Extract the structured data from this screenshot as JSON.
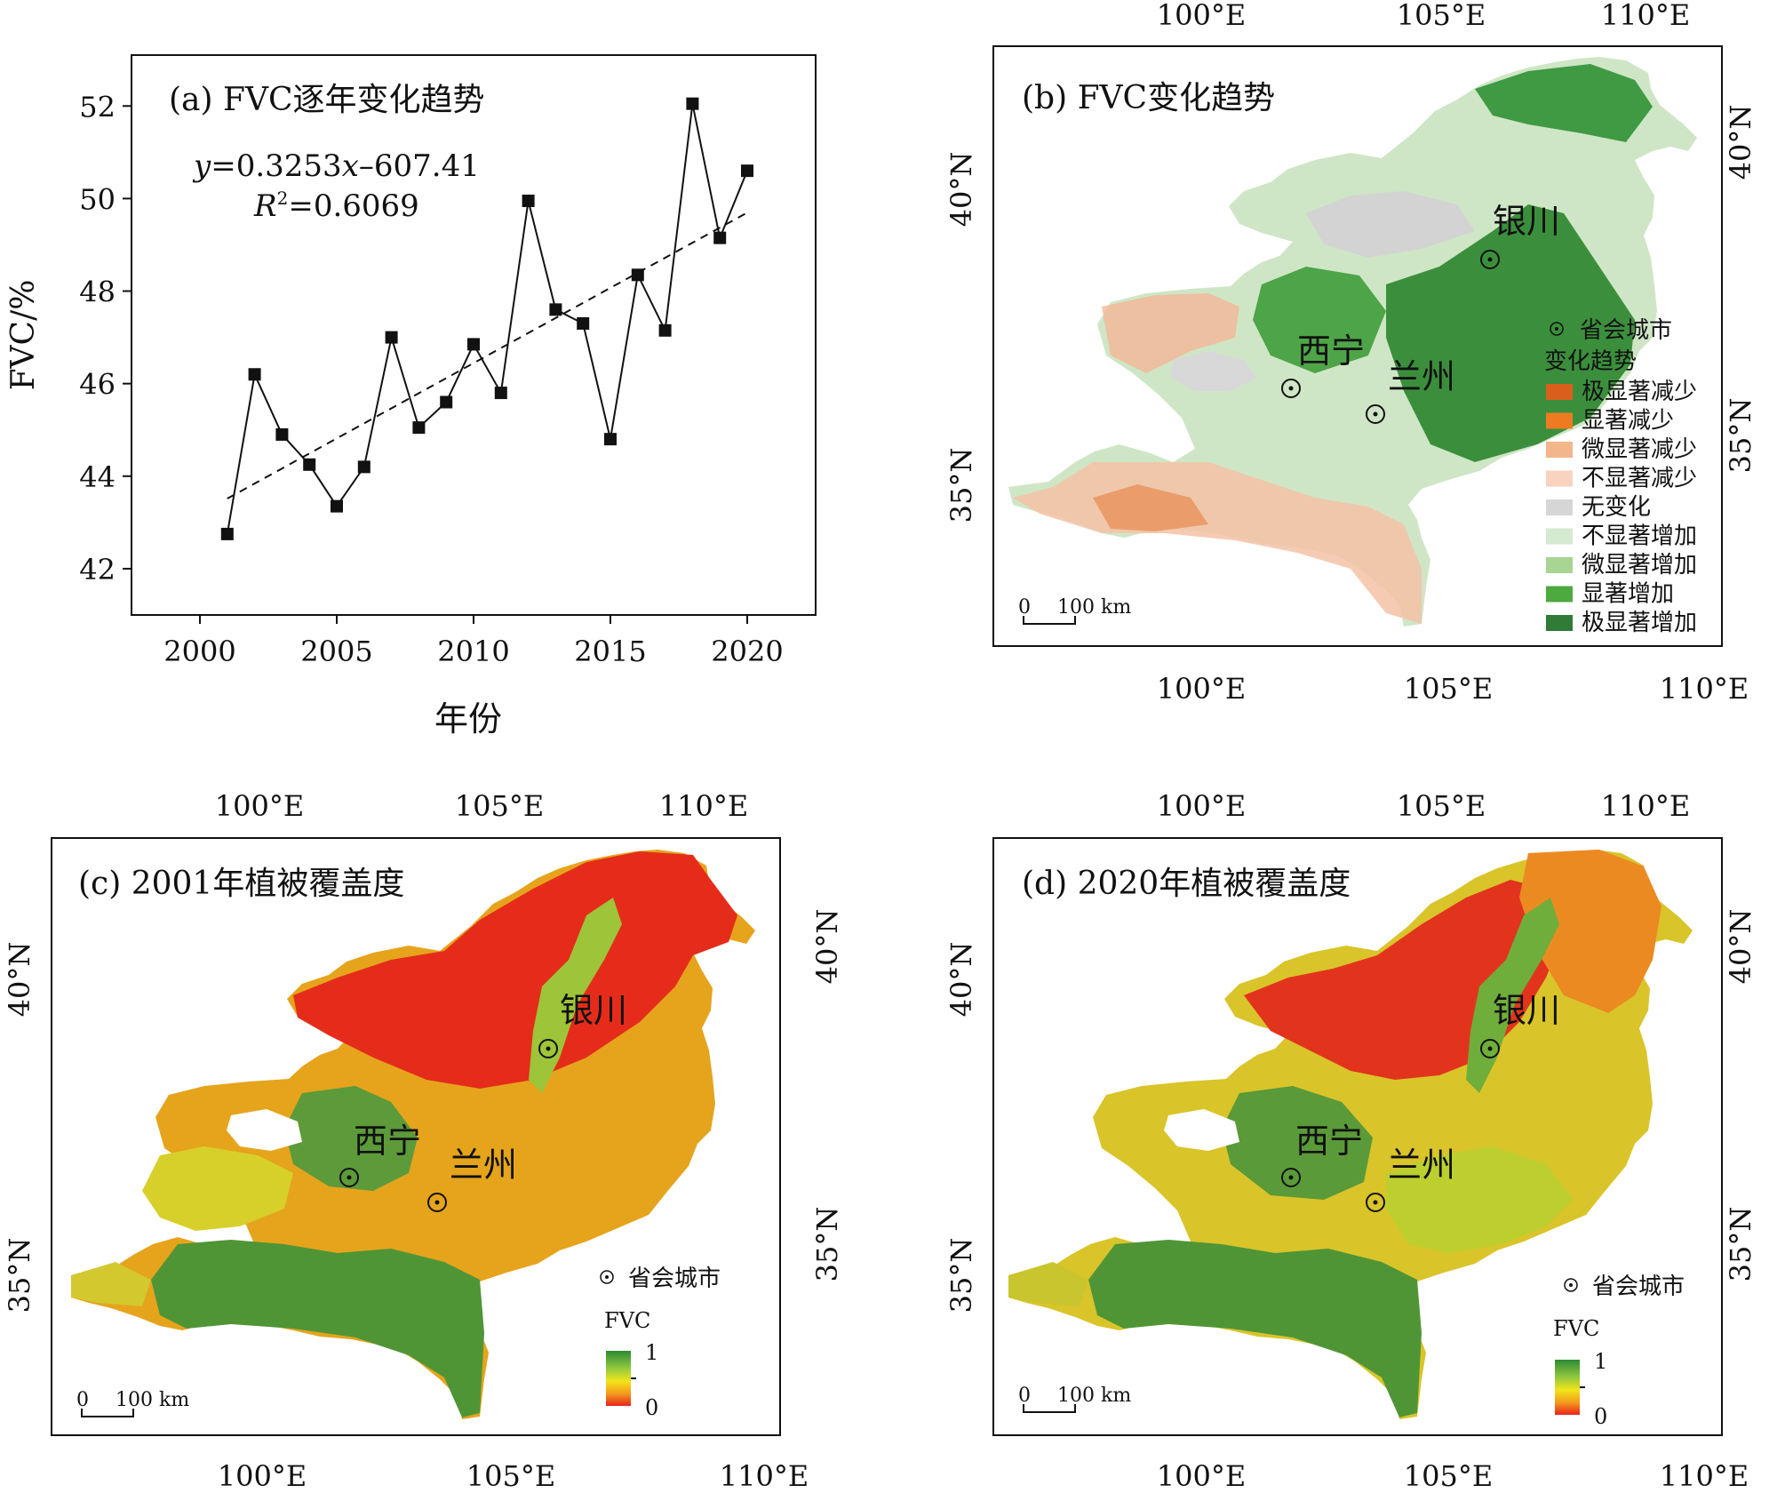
{
  "chart_data": [
    {
      "type": "line",
      "panel": "a",
      "title": "(a) FVC逐年变化趋势",
      "equation": {
        "y": "y",
        "rest": "=0.3253",
        "x": "x",
        "tail": "–607.41"
      },
      "r2": {
        "r": "R",
        "sup": "2",
        "rest": "=0.6069"
      },
      "xlabel": "年份",
      "ylabel": "FVC/%",
      "xlim": [
        1997.5,
        2022.5
      ],
      "ylim": [
        41,
        53.1
      ],
      "xticks": [
        2000,
        2005,
        2010,
        2015,
        2020
      ],
      "yticks": [
        42,
        44,
        46,
        48,
        50,
        52
      ],
      "grid": false,
      "x": [
        2001,
        2002,
        2003,
        2004,
        2005,
        2006,
        2007,
        2008,
        2009,
        2010,
        2011,
        2012,
        2013,
        2014,
        2015,
        2016,
        2017,
        2018,
        2019,
        2020
      ],
      "values": [
        42.75,
        46.2,
        44.9,
        44.25,
        43.35,
        44.2,
        47.0,
        45.05,
        45.6,
        46.85,
        45.8,
        49.95,
        47.6,
        47.3,
        44.8,
        48.35,
        47.15,
        52.05,
        49.15,
        50.6
      ],
      "trend": {
        "slope": 0.3253,
        "intercept": -607.41,
        "style": "dashed"
      }
    },
    {
      "type": "heatmap",
      "panel": "b",
      "title": "(b) FVC变化趋势",
      "lon_ticks": [
        "100°E",
        "105°E",
        "110°E"
      ],
      "lat_ticks": [
        "35°N",
        "40°N"
      ],
      "scalebar": {
        "zero": "0",
        "label": "100 km"
      },
      "cities": [
        "银川",
        "西宁",
        "兰州"
      ],
      "legend_marker": "省会城市",
      "legend_title": "变化趋势",
      "classes": [
        {
          "label": "极显著减少",
          "color": "#d95f1c"
        },
        {
          "label": "显著减少",
          "color": "#ee7b22"
        },
        {
          "label": "微显著减少",
          "color": "#f3b58a"
        },
        {
          "label": "不显著减少",
          "color": "#f9d3c0"
        },
        {
          "label": "无变化",
          "color": "#d6d6d6"
        },
        {
          "label": "不显著增加",
          "color": "#d5ead0"
        },
        {
          "label": "微显著增加",
          "color": "#a8d594"
        },
        {
          "label": "显著增加",
          "color": "#4caa3e"
        },
        {
          "label": "极显著增加",
          "color": "#2f7b37"
        }
      ]
    },
    {
      "type": "heatmap",
      "panel": "c",
      "title": "(c) 2001年植被覆盖度",
      "lon_ticks": [
        "100°E",
        "105°E",
        "110°E"
      ],
      "lat_ticks": [
        "35°N",
        "40°N"
      ],
      "scalebar": {
        "zero": "0",
        "label": "100 km"
      },
      "cities": [
        "银川",
        "西宁",
        "兰州"
      ],
      "legend_marker": "省会城市",
      "colorbar": {
        "title": "FVC",
        "max": "1",
        "min": "0",
        "colors": [
          "#2c8a34",
          "#8cc63f",
          "#f2e51a",
          "#f39a1c",
          "#e8231b"
        ]
      }
    },
    {
      "type": "heatmap",
      "panel": "d",
      "title": "(d) 2020年植被覆盖度",
      "lon_ticks": [
        "100°E",
        "105°E",
        "110°E"
      ],
      "lat_ticks": [
        "35°N",
        "40°N"
      ],
      "scalebar": {
        "zero": "0",
        "label": "100 km"
      },
      "cities": [
        "银川",
        "西宁",
        "兰州"
      ],
      "legend_marker": "省会城市",
      "colorbar": {
        "title": "FVC",
        "max": "1",
        "min": "0",
        "colors": [
          "#2c8a34",
          "#8cc63f",
          "#f2e51a",
          "#f39a1c",
          "#e8231b"
        ]
      }
    }
  ]
}
